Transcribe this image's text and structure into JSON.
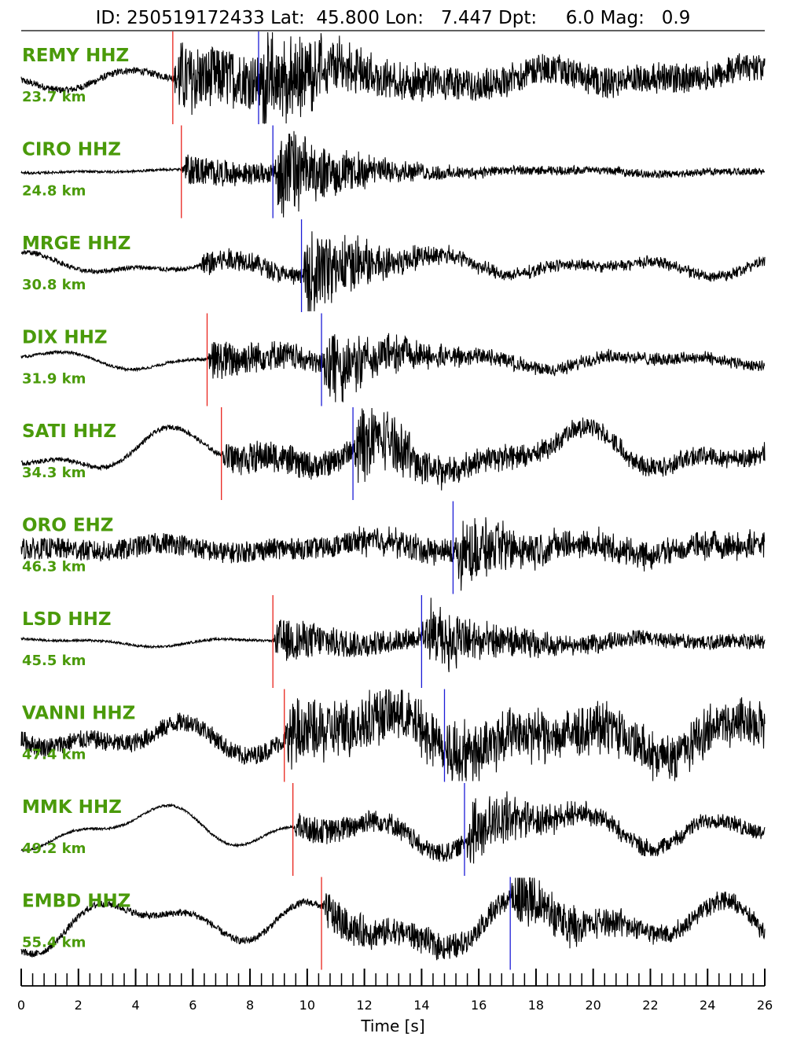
{
  "header": {
    "text": "ID: 250519172433 Lat:  45.800 Lon:   7.447 Dpt:     6.0 Mag:   0.9"
  },
  "chart_data": {
    "type": "line",
    "xlabel": "Time [s]",
    "xlim": [
      0,
      26
    ],
    "major_ticks": [
      0,
      2,
      4,
      6,
      8,
      10,
      12,
      14,
      16,
      18,
      20,
      22,
      24,
      26
    ],
    "minor_tick_step": 0.4,
    "colors": {
      "label": "#4a9a0a",
      "p_pick": "#e8241c",
      "s_pick": "#1c1cd6",
      "trace": "#000000",
      "axis": "#000000"
    },
    "traces": [
      {
        "station": "REMY HHZ",
        "distance": "23.7 km",
        "p": 5.3,
        "s": 8.3,
        "bg": 0.5,
        "bgnoise": 0.15,
        "amp": 1.6,
        "samp": 1.8,
        "decay": 4.0,
        "tail": 0.35
      },
      {
        "station": "CIRO HHZ",
        "distance": "24.8 km",
        "p": 5.6,
        "s": 8.8,
        "bg": 0.1,
        "bgnoise": 0.05,
        "amp": 0.7,
        "samp": 2.0,
        "decay": 4.0,
        "tail": 0.2
      },
      {
        "station": "MRGE HHZ",
        "distance": "30.8 km",
        "p": null,
        "s": 9.8,
        "bg": 0.5,
        "bgnoise": 0.1,
        "amp": 0.6,
        "samp": 2.0,
        "decay": 3.0,
        "tail": 0.3,
        "onset": 6.2
      },
      {
        "station": "DIX HHZ",
        "distance": "31.9 km",
        "p": 6.5,
        "s": 10.5,
        "bg": 0.4,
        "bgnoise": 0.06,
        "amp": 0.9,
        "samp": 1.6,
        "decay": 4.0,
        "tail": 0.25
      },
      {
        "station": "SATI HHZ",
        "distance": "34.3 km",
        "p": 7.0,
        "s": 11.6,
        "bg": 1.0,
        "bgnoise": 0.1,
        "amp": 0.7,
        "samp": 1.6,
        "decay": 6.0,
        "tail": 0.5
      },
      {
        "station": "ORO EHZ",
        "distance": "46.3 km",
        "p": null,
        "s": 15.1,
        "bg": 0.3,
        "bgnoise": 0.45,
        "amp": 0.3,
        "samp": 1.4,
        "decay": 5.0,
        "tail": 0.8
      },
      {
        "station": "LSD HHZ",
        "distance": "45.5 km",
        "p": 8.8,
        "s": 14.0,
        "bg": 0.2,
        "bgnoise": 0.05,
        "amp": 1.0,
        "samp": 1.6,
        "decay": 3.0,
        "tail": 0.3
      },
      {
        "station": "VANNI HHZ",
        "distance": "47.4 km",
        "p": 9.2,
        "s": 14.8,
        "bg": 1.0,
        "bgnoise": 0.4,
        "amp": 1.3,
        "samp": 0.9,
        "decay": 5.0,
        "tail": 0.6
      },
      {
        "station": "MMK HHZ",
        "distance": "49.2 km",
        "p": 9.5,
        "s": 15.5,
        "bg": 1.0,
        "bgnoise": 0.05,
        "amp": 0.6,
        "samp": 1.4,
        "decay": 5.0,
        "tail": 0.5
      },
      {
        "station": "EMBD HHZ",
        "distance": "55.4 km",
        "p": 10.5,
        "s": 17.1,
        "bg": 1.2,
        "bgnoise": 0.15,
        "amp": 0.8,
        "samp": 1.4,
        "decay": 4.0,
        "tail": 0.4
      }
    ]
  }
}
